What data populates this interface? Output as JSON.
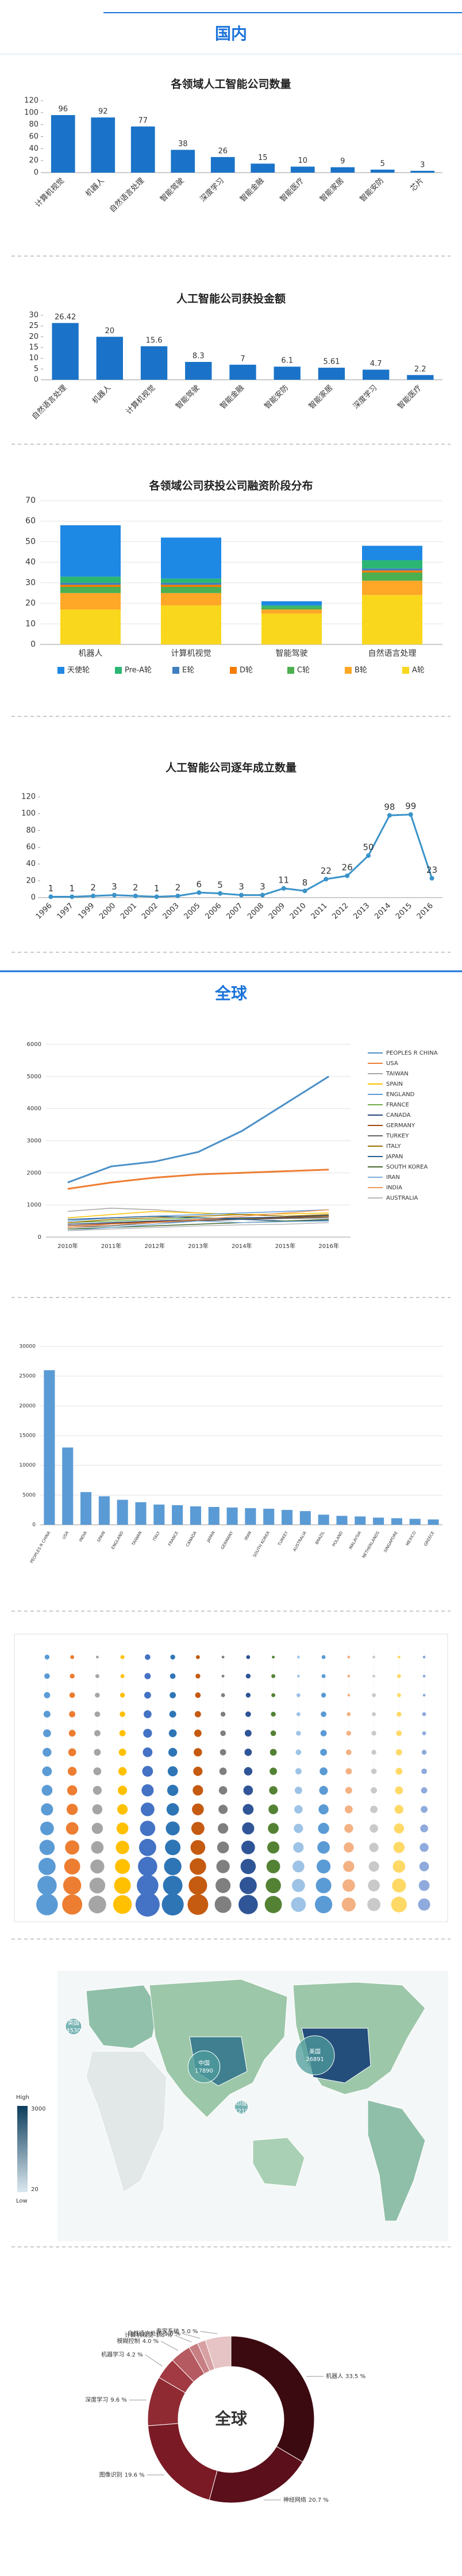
{
  "headers": [
    "国内",
    "全球"
  ],
  "chart_data": [
    {
      "type": "bar",
      "title": "各领域人工智能公司数量",
      "color": "#1a73c8",
      "data_labels": true,
      "grid": false,
      "categories": [
        "计算机视觉",
        "机器人",
        "自然语言处理",
        "智能驾驶",
        "深度学习",
        "智能金融",
        "智能医疗",
        "智能家居",
        "智能安防",
        "芯片"
      ],
      "values": [
        96,
        92,
        77,
        38,
        26,
        15,
        10,
        9,
        5,
        3
      ],
      "ylim": [
        0,
        120
      ],
      "yticks": [
        0,
        20,
        40,
        60,
        80,
        100,
        120
      ]
    },
    {
      "type": "bar",
      "title": "人工智能公司获投金额",
      "color": "#1a73c8",
      "data_labels": true,
      "grid": false,
      "categories": [
        "自然语言处理",
        "机器人",
        "计算机视觉",
        "智能驾驶",
        "智能金融",
        "智能安防",
        "智能家居",
        "深度学习",
        "智能医疗"
      ],
      "values": [
        26.42,
        20,
        15.6,
        8.3,
        7,
        6.1,
        5.61,
        4.7,
        2.2
      ],
      "ylim": [
        0,
        30
      ],
      "yticks": [
        0,
        5,
        10,
        15,
        20,
        25,
        30
      ]
    },
    {
      "type": "stacked_bar",
      "title": "各领域公司获投公司融资阶段分布",
      "grid": true,
      "categories": [
        "机器人",
        "计算机视觉",
        "智能驾驶",
        "自然语言处理"
      ],
      "series": [
        {
          "name": "天使轮",
          "color": "#1e88e5",
          "values": [
            25,
            20,
            2,
            7
          ]
        },
        {
          "name": "Pre-A轮",
          "color": "#2bb673",
          "values": [
            3,
            2,
            1,
            4
          ]
        },
        {
          "name": "E轮",
          "color": "#3f7fbf",
          "values": [
            1,
            1,
            0,
            1
          ]
        },
        {
          "name": "D轮",
          "color": "#f57c00",
          "values": [
            1,
            1,
            0,
            1
          ]
        },
        {
          "name": "C轮",
          "color": "#4caf50",
          "values": [
            3,
            3,
            1,
            4
          ]
        },
        {
          "name": "B轮",
          "color": "#ffa726",
          "values": [
            8,
            6,
            2,
            7
          ]
        },
        {
          "name": "A轮",
          "color": "#f9d71c",
          "values": [
            17,
            19,
            15,
            24
          ]
        }
      ],
      "ylim": [
        0,
        70
      ],
      "yticks": [
        0,
        10,
        20,
        30,
        40,
        50,
        60,
        70
      ]
    },
    {
      "type": "line",
      "title": "人工智能公司逐年成立数量",
      "color": "#3a93c9",
      "data_labels": true,
      "grid": false,
      "categories": [
        "1996",
        "1997",
        "1999",
        "2000",
        "2001",
        "2002",
        "2003",
        "2005",
        "2006",
        "2007",
        "2008",
        "2009",
        "2010",
        "2011",
        "2012",
        "2013",
        "2014",
        "2015",
        "2016"
      ],
      "values": [
        1,
        1,
        2,
        3,
        2,
        1,
        2,
        6,
        5,
        3,
        3,
        11,
        8,
        22,
        26,
        50,
        98,
        99,
        23
      ],
      "ylim": [
        0,
        120
      ],
      "yticks": [
        0,
        20,
        40,
        60,
        80,
        100,
        120
      ]
    },
    {
      "type": "multi_line",
      "grid": true,
      "categories": [
        "2010年",
        "2011年",
        "2012年",
        "2013年",
        "2014年",
        "2015年",
        "2016年"
      ],
      "series": [
        {
          "name": "PEOPLES R CHINA",
          "color": "#4a90c8",
          "values": [
            1700,
            2200,
            2350,
            2650,
            3300,
            4150,
            5000
          ]
        },
        {
          "name": "USA",
          "color": "#ed7d31",
          "values": [
            1500,
            1700,
            1850,
            1950,
            2000,
            2050,
            2100
          ]
        },
        {
          "name": "TAIWAN",
          "color": "#a5a5a5",
          "values": [
            800,
            900,
            850,
            750,
            700,
            650,
            600
          ]
        },
        {
          "name": "SPAIN",
          "color": "#ffc000",
          "values": [
            600,
            700,
            800,
            750,
            700,
            720,
            750
          ]
        },
        {
          "name": "ENGLAND",
          "color": "#5b9bd5",
          "values": [
            500,
            600,
            650,
            700,
            750,
            800,
            850
          ]
        },
        {
          "name": "FRANCE",
          "color": "#70ad47",
          "values": [
            450,
            500,
            550,
            600,
            580,
            600,
            650
          ]
        },
        {
          "name": "CANADA",
          "color": "#264478",
          "values": [
            400,
            450,
            500,
            550,
            600,
            620,
            680
          ]
        },
        {
          "name": "GERMANY",
          "color": "#9e480e",
          "values": [
            350,
            420,
            480,
            520,
            560,
            600,
            640
          ]
        },
        {
          "name": "TURKEY",
          "color": "#636363",
          "values": [
            300,
            350,
            450,
            500,
            550,
            580,
            600
          ]
        },
        {
          "name": "ITALY",
          "color": "#997300",
          "values": [
            450,
            550,
            600,
            650,
            700,
            650,
            700
          ]
        },
        {
          "name": "JAPAN",
          "color": "#255e91",
          "values": [
            550,
            600,
            650,
            600,
            550,
            500,
            520
          ]
        },
        {
          "name": "SOUTH KOREA",
          "color": "#43682b",
          "values": [
            250,
            300,
            350,
            400,
            450,
            500,
            550
          ]
        },
        {
          "name": "IRAN",
          "color": "#7cafdd",
          "values": [
            200,
            300,
            400,
            500,
            450,
            480,
            500
          ]
        },
        {
          "name": "INDIA",
          "color": "#f1975a",
          "values": [
            300,
            400,
            450,
            550,
            650,
            750,
            850
          ]
        },
        {
          "name": "AUSTRALIA",
          "color": "#b7b7b7",
          "values": [
            200,
            250,
            300,
            350,
            380,
            400,
            450
          ]
        }
      ],
      "ylim": [
        0,
        6000
      ],
      "yticks": [
        0,
        1000,
        2000,
        3000,
        4000,
        5000,
        6000
      ]
    },
    {
      "type": "bar",
      "color": "#5b9bd5",
      "data_labels": false,
      "grid": true,
      "categories": [
        "PEOPLES R CHINA",
        "USA",
        "INDIA",
        "SPAIN",
        "ENGLAND",
        "TAIWAN",
        "ITALY",
        "FRANCE",
        "CANADA",
        "JAPAN",
        "GERMANY",
        "IRAN",
        "SOUTH KOREA",
        "TURKEY",
        "AUSTRALIA",
        "BRAZIL",
        "POLAND",
        "MALAYSIA",
        "NETHERLANDS",
        "SINGAPORE",
        "MEXICO",
        "GREECE"
      ],
      "values": [
        26000,
        13000,
        5500,
        4800,
        4200,
        3800,
        3400,
        3300,
        3100,
        3000,
        2900,
        2800,
        2700,
        2500,
        2300,
        1700,
        1500,
        1400,
        1200,
        1100,
        1000,
        900
      ],
      "ylim": [
        0,
        30000
      ],
      "yticks": [
        0,
        5000,
        10000,
        15000,
        20000,
        25000,
        30000
      ]
    },
    {
      "type": "bubble",
      "series": [
        {
          "color": "#5b9bd5",
          "values": [
            3,
            4,
            5,
            6,
            8,
            10,
            12,
            15,
            19,
            24,
            30,
            38,
            48,
            60
          ]
        },
        {
          "color": "#ed7d31",
          "values": [
            2,
            3,
            4,
            5,
            6,
            8,
            10,
            13,
            16,
            20,
            26,
            33,
            42,
            52
          ]
        },
        {
          "color": "#a5a5a5",
          "values": [
            1,
            2,
            3,
            4,
            5,
            6,
            8,
            10,
            13,
            16,
            20,
            25,
            32,
            40
          ]
        },
        {
          "color": "#ffc000",
          "values": [
            2,
            2,
            3,
            4,
            5,
            7,
            9,
            11,
            14,
            18,
            23,
            29,
            36,
            45
          ]
        },
        {
          "color": "#4472c4",
          "values": [
            4,
            5,
            6,
            8,
            10,
            12,
            15,
            19,
            24,
            30,
            38,
            48,
            60,
            75
          ]
        },
        {
          "color": "#2e75b6",
          "values": [
            3,
            4,
            5,
            6,
            8,
            10,
            13,
            16,
            20,
            25,
            31,
            39,
            49,
            62
          ]
        },
        {
          "color": "#c55a11",
          "values": [
            2,
            3,
            4,
            5,
            7,
            9,
            11,
            14,
            18,
            22,
            28,
            35,
            44,
            55
          ]
        },
        {
          "color": "#7f7f7f",
          "values": [
            1,
            1,
            2,
            3,
            4,
            5,
            7,
            9,
            11,
            14,
            18,
            23,
            29,
            36
          ]
        },
        {
          "color": "#2f5597",
          "values": [
            2,
            3,
            3,
            4,
            6,
            7,
            9,
            12,
            15,
            19,
            24,
            30,
            38,
            48
          ]
        },
        {
          "color": "#548235",
          "values": [
            1,
            2,
            2,
            3,
            4,
            6,
            7,
            9,
            12,
            15,
            19,
            24,
            30,
            38
          ]
        },
        {
          "color": "#9dc3e6",
          "values": [
            1,
            1,
            2,
            2,
            3,
            4,
            5,
            7,
            9,
            11,
            14,
            18,
            22,
            28
          ]
        },
        {
          "color": "#5b9bd5",
          "values": [
            2,
            2,
            3,
            4,
            5,
            6,
            8,
            10,
            13,
            16,
            20,
            25,
            31,
            39
          ]
        },
        {
          "color": "#f4b183",
          "values": [
            1,
            1,
            1,
            2,
            3,
            4,
            5,
            6,
            8,
            10,
            13,
            16,
            20,
            25
          ]
        },
        {
          "color": "#c9c9c9",
          "values": [
            1,
            1,
            2,
            2,
            3,
            3,
            4,
            5,
            7,
            9,
            11,
            14,
            18,
            22
          ]
        },
        {
          "color": "#ffd966",
          "values": [
            1,
            2,
            2,
            3,
            4,
            5,
            6,
            8,
            10,
            13,
            16,
            20,
            25,
            32
          ]
        },
        {
          "color": "#8faadc",
          "values": [
            1,
            1,
            1,
            2,
            2,
            3,
            4,
            5,
            6,
            8,
            10,
            12,
            15,
            19
          ]
        }
      ]
    },
    {
      "type": "map",
      "color": "#4f9c9c",
      "legend_high_label": "High",
      "legend_high": 3000,
      "legend_low_label": "Low",
      "legend_low": 20,
      "categories": [
        "英国",
        "中国",
        "印度",
        "美国"
      ],
      "values": [
        4530,
        17890,
        3210,
        26891
      ]
    },
    {
      "type": "donut",
      "title": "全球",
      "categories": [
        "机器人",
        "神经网络",
        "图像识别",
        "深度学习",
        "机器学习",
        "模糊控制",
        "计算机视觉",
        "自然语言处理",
        "专家系统"
      ],
      "values": [
        33.5,
        20.7,
        19.6,
        9.6,
        4.2,
        4.0,
        1.8,
        1.6,
        5.0
      ],
      "value_labels": [
        "33.5 %",
        "20.7 %",
        "19.6 %",
        "9.6 %",
        "4.2 %",
        "4.0 %",
        "1.8 %",
        "1.6 %",
        "5.0 %"
      ],
      "colors": [
        "#3b0a10",
        "#5a0f1a",
        "#7a1a24",
        "#8f2a33",
        "#a13a42",
        "#b55a60",
        "#c77f83",
        "#d7a0a2",
        "#e6c3c4"
      ]
    }
  ]
}
